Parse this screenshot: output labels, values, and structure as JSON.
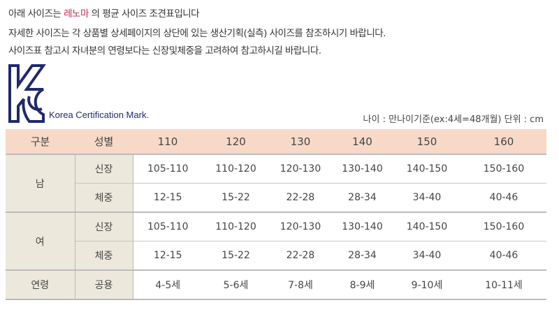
{
  "notice": {
    "line1_pre": "아래 사이즈는 ",
    "brand": "레노마",
    "line1_post": " 의 평균 사이즈 조견표입니다",
    "line2": "자세한 사이즈는 각 상품별 상세페이지의 상단에 있는 생산기획(실측) 사이즈를 참조하시기 바랍니다.",
    "line3": "사이즈표 참고시 자녀분의 연령보다는 신장및체중을 고려하여 참고하시길 바랍니다."
  },
  "logo": {
    "text": "Korea Certification Mark.",
    "lettering": "KC",
    "color": "#1f2a6b"
  },
  "unit_note": "나이 : 만나이기준(ex:4세=48개월) 단위 : cm",
  "table": {
    "header": [
      "구분",
      "성별",
      "110",
      "120",
      "130",
      "140",
      "150",
      "160"
    ],
    "groups": [
      {
        "label": "남",
        "rows": [
          {
            "label": "신장",
            "values": [
              "105-110",
              "110-120",
              "120-130",
              "130-140",
              "140-150",
              "150-160"
            ]
          },
          {
            "label": "체중",
            "values": [
              "12-15",
              "15-22",
              "22-28",
              "28-34",
              "34-40",
              "40-46"
            ]
          }
        ]
      },
      {
        "label": "여",
        "rows": [
          {
            "label": "신장",
            "values": [
              "105-110",
              "110-120",
              "120-130",
              "130-140",
              "140-150",
              "150-160"
            ]
          },
          {
            "label": "체중",
            "values": [
              "12-15",
              "15-22",
              "22-28",
              "28-34",
              "34-40",
              "40-46"
            ]
          }
        ]
      },
      {
        "label": "연령",
        "rows": [
          {
            "label": "공용",
            "values": [
              "4-5세",
              "5-6세",
              "7-8세",
              "8-9세",
              "9-10세",
              "10-11세"
            ]
          }
        ]
      }
    ]
  },
  "colors": {
    "header_bg": "#f8d9c8",
    "label_bg": "#ece8db",
    "brand": "#c8284a"
  }
}
